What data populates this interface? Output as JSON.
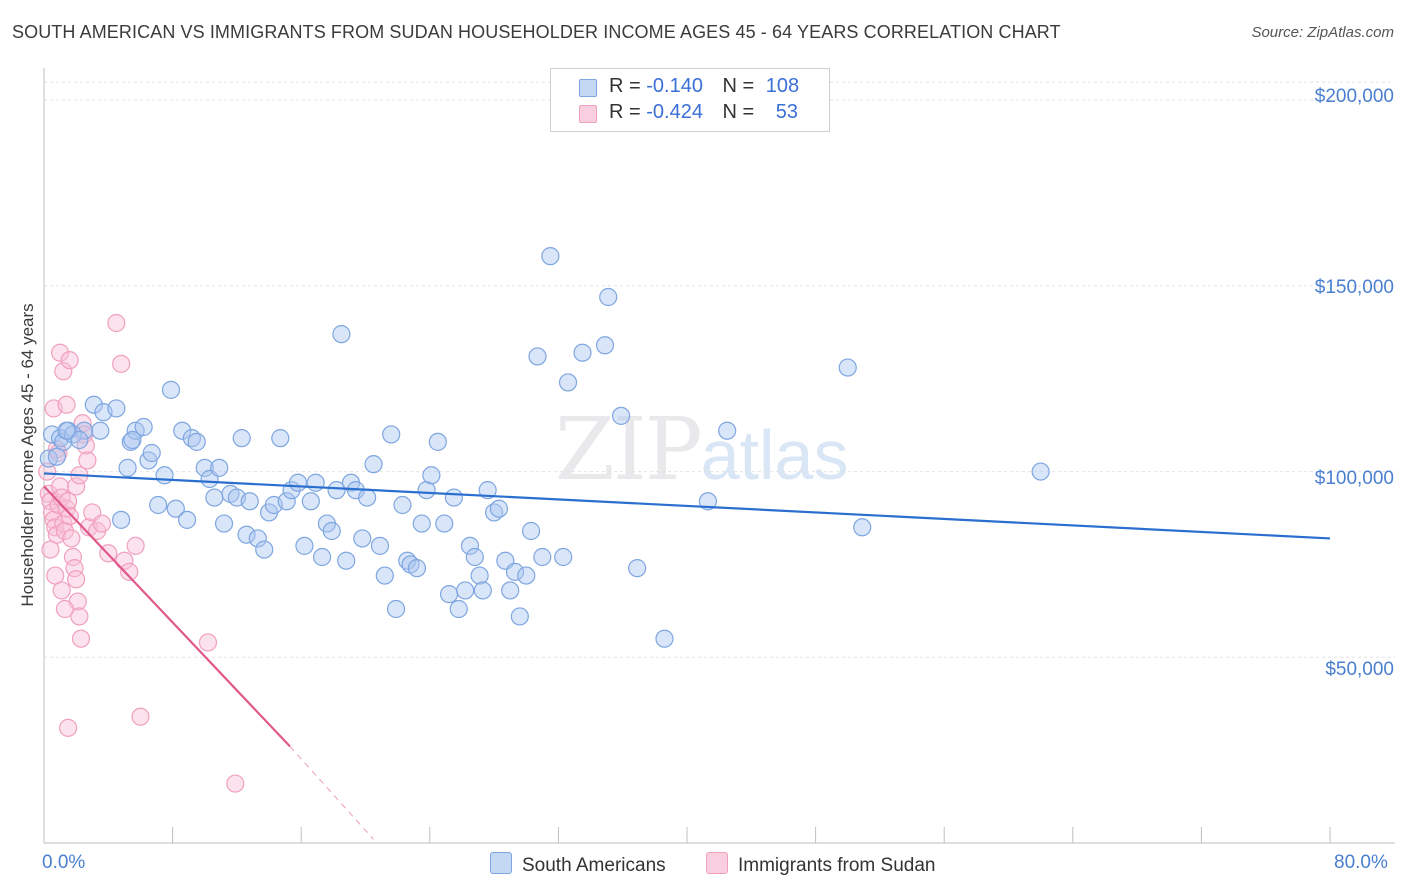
{
  "header": {
    "title": "SOUTH AMERICAN VS IMMIGRANTS FROM SUDAN HOUSEHOLDER INCOME AGES 45 - 64 YEARS CORRELATION CHART",
    "source": "Source: ZipAtlas.com"
  },
  "watermark": {
    "zip": "ZIP",
    "atlas": "atlas"
  },
  "legend": {
    "rows": [
      {
        "r_label": "R =",
        "r_value": "-0.140",
        "n_label": "N =",
        "n_value": "108"
      },
      {
        "r_label": "R =",
        "r_value": "-0.424",
        "n_label": "N =",
        "n_value": "53"
      }
    ]
  },
  "bottom_legend": {
    "series1": "South Americans",
    "series2": "Immigrants from Sudan"
  },
  "chart_data": {
    "type": "scatter",
    "title": "SOUTH AMERICAN VS IMMIGRANTS FROM SUDAN HOUSEHOLDER INCOME AGES 45 - 64 YEARS CORRELATION CHART",
    "xlabel": "",
    "ylabel": "Householder Income Ages 45 - 64 years",
    "xlim": [
      0,
      80
    ],
    "ylim": [
      0,
      210000
    ],
    "x_tick_labels": [
      "0.0%",
      "80.0%"
    ],
    "y_ticks": [
      50000,
      100000,
      150000,
      200000
    ],
    "y_tick_labels": [
      "$50,000",
      "$100,000",
      "$150,000",
      "$200,000"
    ],
    "grid": true,
    "series": [
      {
        "name": "South Americans",
        "color": "#7ea6e0",
        "line_color": "#2a6fcf",
        "trend": {
          "x0": 0,
          "y0": 99500,
          "x1": 80,
          "y1": 82000
        },
        "points": [
          [
            0.3,
            103500
          ],
          [
            0.5,
            110000
          ],
          [
            1.0,
            109000
          ],
          [
            1.2,
            108000
          ],
          [
            1.5,
            111000
          ],
          [
            2.5,
            111000
          ],
          [
            3.1,
            118000
          ],
          [
            3.7,
            116000
          ],
          [
            4.5,
            117000
          ],
          [
            3.5,
            111000
          ],
          [
            4.8,
            87000
          ],
          [
            5.2,
            101000
          ],
          [
            5.4,
            108000
          ],
          [
            5.7,
            111000
          ],
          [
            5.5,
            108500
          ],
          [
            6.2,
            112000
          ],
          [
            6.5,
            103000
          ],
          [
            6.7,
            105000
          ],
          [
            7.1,
            91000
          ],
          [
            7.5,
            99000
          ],
          [
            7.9,
            122000
          ],
          [
            8.2,
            90000
          ],
          [
            8.9,
            87000
          ],
          [
            8.6,
            111000
          ],
          [
            9.2,
            109000
          ],
          [
            9.5,
            108000
          ],
          [
            10.0,
            101000
          ],
          [
            10.3,
            98000
          ],
          [
            10.6,
            93000
          ],
          [
            10.9,
            101000
          ],
          [
            11.2,
            86000
          ],
          [
            11.6,
            94000
          ],
          [
            12.0,
            93000
          ],
          [
            12.3,
            109000
          ],
          [
            12.6,
            83000
          ],
          [
            12.8,
            92000
          ],
          [
            13.3,
            82000
          ],
          [
            13.7,
            79000
          ],
          [
            14.0,
            89000
          ],
          [
            14.3,
            91000
          ],
          [
            14.7,
            109000
          ],
          [
            15.1,
            92000
          ],
          [
            15.4,
            95000
          ],
          [
            15.8,
            97000
          ],
          [
            16.2,
            80000
          ],
          [
            16.6,
            92000
          ],
          [
            16.9,
            97000
          ],
          [
            17.3,
            77000
          ],
          [
            17.6,
            86000
          ],
          [
            17.9,
            84000
          ],
          [
            18.2,
            95000
          ],
          [
            18.5,
            137000
          ],
          [
            18.8,
            76000
          ],
          [
            19.1,
            97000
          ],
          [
            19.4,
            95000
          ],
          [
            19.8,
            82000
          ],
          [
            20.1,
            93000
          ],
          [
            20.5,
            102000
          ],
          [
            20.9,
            80000
          ],
          [
            21.2,
            72000
          ],
          [
            21.6,
            110000
          ],
          [
            21.9,
            63000
          ],
          [
            22.3,
            91000
          ],
          [
            22.6,
            76000
          ],
          [
            22.8,
            75000
          ],
          [
            23.2,
            74000
          ],
          [
            23.5,
            86000
          ],
          [
            23.8,
            95000
          ],
          [
            24.1,
            99000
          ],
          [
            24.5,
            108000
          ],
          [
            24.9,
            86000
          ],
          [
            25.2,
            67000
          ],
          [
            25.5,
            93000
          ],
          [
            25.8,
            63000
          ],
          [
            26.2,
            68000
          ],
          [
            26.5,
            80000
          ],
          [
            26.8,
            77000
          ],
          [
            27.1,
            72000
          ],
          [
            27.3,
            68000
          ],
          [
            27.6,
            95000
          ],
          [
            28.0,
            89000
          ],
          [
            28.3,
            90000
          ],
          [
            28.7,
            76000
          ],
          [
            29.0,
            68000
          ],
          [
            29.3,
            73000
          ],
          [
            29.6,
            61000
          ],
          [
            30.0,
            72000
          ],
          [
            30.3,
            84000
          ],
          [
            30.7,
            131000
          ],
          [
            31.0,
            77000
          ],
          [
            31.5,
            158000
          ],
          [
            32.3,
            77000
          ],
          [
            32.6,
            124000
          ],
          [
            33.5,
            132000
          ],
          [
            34.9,
            134000
          ],
          [
            35.1,
            147000
          ],
          [
            35.9,
            115000
          ],
          [
            36.9,
            74000
          ],
          [
            38.6,
            55000
          ],
          [
            41.3,
            92000
          ],
          [
            42.5,
            111000
          ],
          [
            50.0,
            128000
          ],
          [
            50.9,
            85000
          ],
          [
            62.0,
            100000
          ],
          [
            1.8,
            110000
          ],
          [
            2.2,
            108500
          ],
          [
            0.8,
            104000
          ],
          [
            1.4,
            111000
          ]
        ]
      },
      {
        "name": "Immigrants from Sudan",
        "color": "#f0a0be",
        "line_color": "#e0588a",
        "trend": {
          "x0": 0,
          "y0": 96000,
          "x1": 15.3,
          "y1": 26000
        },
        "trend_ext": {
          "x0": 15.3,
          "y0": 26000,
          "x1": 20.5,
          "y1": 1000
        },
        "points": [
          [
            0.2,
            100000
          ],
          [
            0.3,
            94000
          ],
          [
            0.4,
            92000
          ],
          [
            0.5,
            89000
          ],
          [
            0.6,
            87000
          ],
          [
            0.7,
            85000
          ],
          [
            0.8,
            83000
          ],
          [
            0.9,
            91000
          ],
          [
            1.0,
            96000
          ],
          [
            1.1,
            93000
          ],
          [
            1.2,
            86000
          ],
          [
            1.3,
            84000
          ],
          [
            1.4,
            90000
          ],
          [
            1.5,
            92000
          ],
          [
            1.6,
            88000
          ],
          [
            1.7,
            82000
          ],
          [
            1.8,
            77000
          ],
          [
            1.9,
            74000
          ],
          [
            2.0,
            71000
          ],
          [
            2.1,
            65000
          ],
          [
            2.2,
            61000
          ],
          [
            2.3,
            55000
          ],
          [
            2.4,
            113000
          ],
          [
            2.5,
            110000
          ],
          [
            2.6,
            107000
          ],
          [
            2.7,
            103000
          ],
          [
            0.6,
            117000
          ],
          [
            0.8,
            106000
          ],
          [
            1.0,
            132000
          ],
          [
            1.2,
            127000
          ],
          [
            1.4,
            118000
          ],
          [
            1.6,
            130000
          ],
          [
            0.4,
            79000
          ],
          [
            0.7,
            72000
          ],
          [
            1.1,
            68000
          ],
          [
            1.3,
            63000
          ],
          [
            1.5,
            31000
          ],
          [
            2.8,
            85000
          ],
          [
            3.0,
            89000
          ],
          [
            3.3,
            84000
          ],
          [
            3.6,
            86000
          ],
          [
            4.0,
            78000
          ],
          [
            4.5,
            140000
          ],
          [
            4.8,
            129000
          ],
          [
            5.0,
            76000
          ],
          [
            5.3,
            73000
          ],
          [
            5.7,
            80000
          ],
          [
            6.0,
            34000
          ],
          [
            10.2,
            54000
          ],
          [
            11.9,
            16000
          ],
          [
            2.0,
            96000
          ],
          [
            2.2,
            99000
          ],
          [
            0.9,
            105000
          ]
        ]
      }
    ]
  }
}
